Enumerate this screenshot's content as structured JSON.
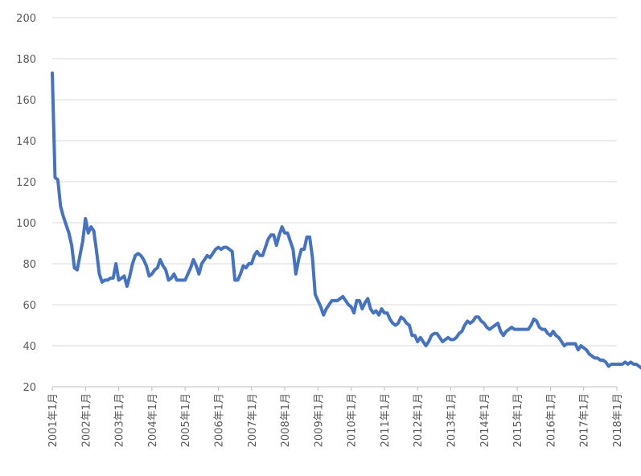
{
  "chart_data": {
    "type": "line",
    "title": "",
    "xlabel": "",
    "ylabel": "",
    "ylim": [
      20,
      200
    ],
    "yticks": [
      20,
      40,
      60,
      80,
      100,
      120,
      140,
      160,
      180,
      200
    ],
    "grid": "horizontal",
    "legend": "none",
    "x_tick_labels": [
      "2001年1月",
      "2002年1月",
      "2003年1月",
      "2004年1月",
      "2005年1月",
      "2006年1月",
      "2007年1月",
      "2008年1月",
      "2009年1月",
      "2010年1月",
      "2011年1月",
      "2012年1月",
      "2013年1月",
      "2014年1月",
      "2015年1月",
      "2016年1月",
      "2017年1月",
      "2018年1月"
    ],
    "x_start": "2001-01",
    "line_color": "#4472c4",
    "series": [
      {
        "values": [
          173,
          122,
          121,
          108,
          103,
          99,
          95,
          89,
          78,
          77,
          84,
          91,
          102,
          95,
          98,
          96,
          86,
          75,
          71,
          72,
          72,
          73,
          73,
          80,
          72,
          73,
          74,
          69,
          74,
          80,
          84,
          85,
          84,
          82,
          79,
          74,
          75,
          77,
          78,
          82,
          79,
          77,
          72,
          73,
          75,
          72,
          72,
          72,
          72,
          75,
          78,
          82,
          79,
          75,
          80,
          82,
          84,
          83,
          85,
          87,
          88,
          87,
          88,
          88,
          87,
          86,
          72,
          72,
          75,
          79,
          78,
          80,
          80,
          84,
          86,
          84,
          84,
          88,
          92,
          94,
          94,
          89,
          94,
          98,
          95,
          95,
          91,
          87,
          75,
          82,
          87,
          87,
          93,
          93,
          83,
          65,
          62,
          59,
          55,
          58,
          60,
          62,
          62,
          62,
          63,
          64,
          62,
          60,
          59,
          56,
          62,
          62,
          58,
          61,
          63,
          58,
          56,
          57,
          55,
          58,
          56,
          56,
          53,
          51,
          50,
          51,
          54,
          53,
          51,
          50,
          45,
          45,
          42,
          44,
          42,
          40,
          42,
          45,
          46,
          46,
          44,
          42,
          43,
          44,
          43,
          43,
          44,
          46,
          47,
          50,
          52,
          51,
          52,
          54,
          54,
          52,
          51,
          49,
          48,
          49,
          50,
          51,
          47,
          45,
          47,
          48,
          49,
          48,
          48,
          48,
          48,
          48,
          48,
          50,
          53,
          52,
          49,
          48,
          48,
          46,
          45,
          47,
          45,
          44,
          42,
          40,
          41,
          41,
          41,
          41,
          38,
          40,
          39,
          38,
          36,
          35,
          34,
          34,
          33,
          33,
          32,
          30,
          31,
          31,
          31,
          31,
          31,
          32,
          31,
          32,
          31,
          31,
          30,
          29,
          29,
          28,
          29,
          29
        ]
      }
    ]
  }
}
